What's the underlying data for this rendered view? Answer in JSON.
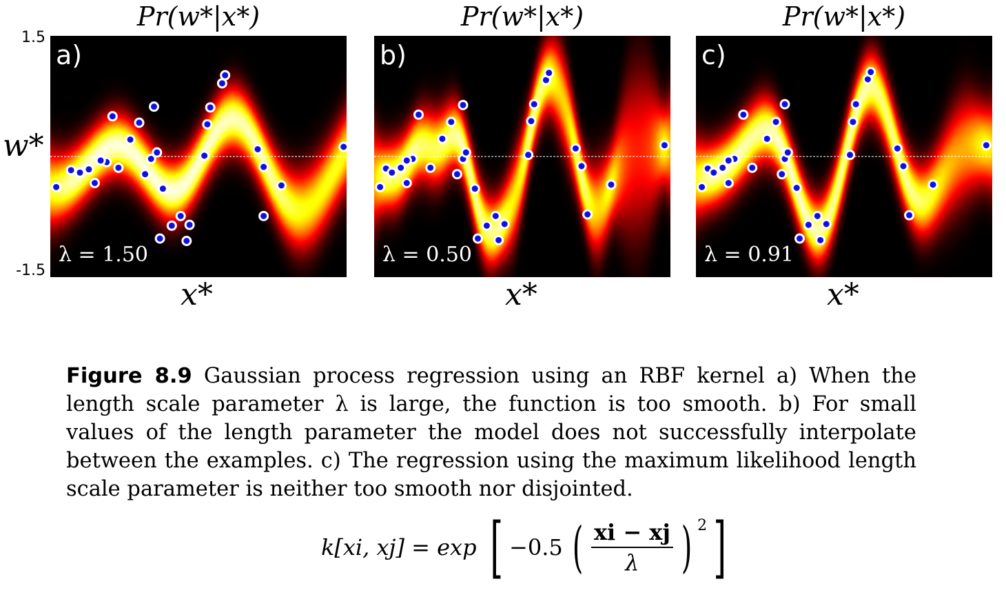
{
  "chart_data": [
    {
      "type": "heatmap",
      "title": "Pr(w*|x*)",
      "panel_label": "a)",
      "annotation": "λ = 1.50",
      "xlabel": "x*",
      "ylabel": "w*",
      "ylim": [
        -1.5,
        1.5
      ],
      "yticks": [
        "1.5",
        "-1.5"
      ],
      "length_scale": 1.5,
      "colormap": "hot",
      "points": [
        [
          0.02,
          -0.38
        ],
        [
          0.07,
          -0.17
        ],
        [
          0.1,
          -0.2
        ],
        [
          0.13,
          -0.16
        ],
        [
          0.15,
          -0.33
        ],
        [
          0.17,
          -0.03
        ],
        [
          0.19,
          -0.07
        ],
        [
          0.17,
          -0.05
        ],
        [
          0.21,
          0.5
        ],
        [
          0.23,
          -0.14
        ],
        [
          0.27,
          0.21
        ],
        [
          0.3,
          0.42
        ],
        [
          0.32,
          -0.22
        ],
        [
          0.34,
          -0.03
        ],
        [
          0.35,
          0.62
        ],
        [
          0.36,
          0.05
        ],
        [
          0.38,
          -0.4
        ],
        [
          0.37,
          -1.02
        ],
        [
          0.41,
          -0.86
        ],
        [
          0.44,
          -0.74
        ],
        [
          0.46,
          -1.05
        ],
        [
          0.47,
          -0.85
        ],
        [
          0.52,
          0.01
        ],
        [
          0.53,
          0.4
        ],
        [
          0.54,
          0.61
        ],
        [
          0.58,
          0.91
        ],
        [
          0.59,
          1.01
        ],
        [
          0.7,
          0.09
        ],
        [
          0.72,
          -0.13
        ],
        [
          0.72,
          -0.74
        ],
        [
          0.78,
          -0.36
        ],
        [
          0.99,
          0.12
        ]
      ]
    },
    {
      "type": "heatmap",
      "title": "Pr(w*|x*)",
      "panel_label": "b)",
      "annotation": "λ = 0.50",
      "xlabel": "x*",
      "ylabel": "w*",
      "ylim": [
        -1.5,
        1.5
      ],
      "length_scale": 0.5,
      "colormap": "hot",
      "points": [
        [
          0.02,
          -0.38
        ],
        [
          0.04,
          -0.15
        ],
        [
          0.06,
          -0.2
        ],
        [
          0.09,
          -0.14
        ],
        [
          0.11,
          -0.33
        ],
        [
          0.13,
          -0.03
        ],
        [
          0.11,
          -0.05
        ],
        [
          0.15,
          0.52
        ],
        [
          0.19,
          -0.14
        ],
        [
          0.23,
          0.22
        ],
        [
          0.26,
          0.43
        ],
        [
          0.28,
          -0.22
        ],
        [
          0.3,
          -0.03
        ],
        [
          0.3,
          0.64
        ],
        [
          0.31,
          0.05
        ],
        [
          0.34,
          -0.4
        ],
        [
          0.35,
          -1.02
        ],
        [
          0.38,
          -0.86
        ],
        [
          0.41,
          -0.74
        ],
        [
          0.42,
          -1.04
        ],
        [
          0.44,
          -0.84
        ],
        [
          0.52,
          0.02
        ],
        [
          0.53,
          0.44
        ],
        [
          0.54,
          0.65
        ],
        [
          0.58,
          0.95
        ],
        [
          0.59,
          1.04
        ],
        [
          0.68,
          0.1
        ],
        [
          0.7,
          -0.12
        ],
        [
          0.72,
          -0.72
        ],
        [
          0.8,
          -0.35
        ],
        [
          0.98,
          0.14
        ]
      ]
    },
    {
      "type": "heatmap",
      "title": "Pr(w*|x*)",
      "panel_label": "c)",
      "annotation": "λ = 0.91",
      "xlabel": "x*",
      "ylabel": "",
      "ylim": [
        -1.5,
        1.5
      ],
      "length_scale": 0.91,
      "colormap": "hot",
      "points": [
        [
          0.02,
          -0.38
        ],
        [
          0.04,
          -0.15
        ],
        [
          0.06,
          -0.2
        ],
        [
          0.09,
          -0.14
        ],
        [
          0.11,
          -0.33
        ],
        [
          0.13,
          -0.03
        ],
        [
          0.11,
          -0.05
        ],
        [
          0.16,
          0.52
        ],
        [
          0.19,
          -0.14
        ],
        [
          0.24,
          0.22
        ],
        [
          0.27,
          0.43
        ],
        [
          0.29,
          -0.22
        ],
        [
          0.3,
          -0.03
        ],
        [
          0.3,
          0.65
        ],
        [
          0.31,
          0.05
        ],
        [
          0.34,
          -0.39
        ],
        [
          0.35,
          -1.02
        ],
        [
          0.38,
          -0.85
        ],
        [
          0.41,
          -0.74
        ],
        [
          0.42,
          -1.04
        ],
        [
          0.44,
          -0.84
        ],
        [
          0.52,
          0.02
        ],
        [
          0.53,
          0.43
        ],
        [
          0.54,
          0.65
        ],
        [
          0.58,
          0.96
        ],
        [
          0.59,
          1.05
        ],
        [
          0.68,
          0.1
        ],
        [
          0.7,
          -0.12
        ],
        [
          0.72,
          -0.73
        ],
        [
          0.8,
          -0.35
        ],
        [
          0.98,
          0.14
        ]
      ]
    }
  ],
  "caption": {
    "label": "Figure 8.9",
    "text": "Gaussian process regression using an RBF kernel a) When the length scale parameter λ is large, the function is too smooth. b) For small values of the length parameter the model does not successfully interpolate between the examples. c) The regression using the maximum likelihood length scale parameter is neither too smooth nor disjointed."
  },
  "formula": {
    "lhs": "k[xi, xj] = exp",
    "coef": "−0.5",
    "numerator": "xi − xj",
    "denominator": "λ",
    "power": "2"
  },
  "colors": {
    "point_fill": "#1010e0",
    "point_stroke": "#ffffff",
    "midline": "#ffffff"
  }
}
